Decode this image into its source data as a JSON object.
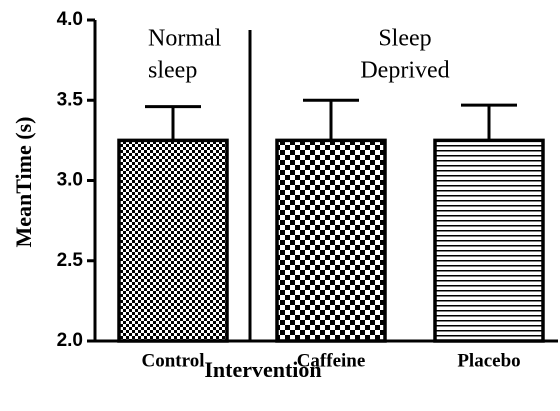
{
  "chart_data": {
    "type": "bar",
    "categories": [
      "Control",
      "Caffeine",
      "Placebo"
    ],
    "values": [
      3.25,
      3.25,
      3.25
    ],
    "errors": [
      0.21,
      0.25,
      0.22
    ],
    "patterns": [
      "fine-checker",
      "checker",
      "horizontal-lines"
    ],
    "color": "#000000",
    "xlabel": "Intervention",
    "ylabel": "MeanTime (s)",
    "ylim": [
      2.0,
      4.0
    ],
    "yticks": [
      {
        "value": 2.0,
        "label": "2.0"
      },
      2.5,
      {
        "value": 3.0,
        "label": "3.0"
      },
      3.5,
      {
        "value": 4.0,
        "label": "4.0"
      }
    ],
    "annotations": [
      [
        "Normal",
        "sleep"
      ],
      [
        "Sleep",
        "Deprived"
      ]
    ]
  }
}
